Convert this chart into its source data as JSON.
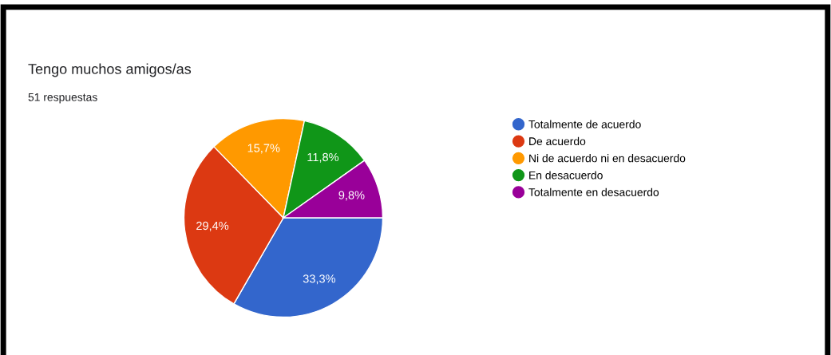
{
  "chart_data": {
    "type": "pie",
    "title": "Tengo muchos amigos/as",
    "subtitle": "51 respuestas",
    "categories": [
      "Totalmente de acuerdo",
      "De acuerdo",
      "Ni de acuerdo ni en desacuerdo",
      "En desacuerdo",
      "Totalmente en desacuerdo"
    ],
    "values": [
      33.3,
      29.4,
      15.7,
      11.8,
      9.8
    ],
    "value_labels": [
      "33,3%",
      "29,4%",
      "15,7%",
      "11,8%",
      "9,8%"
    ],
    "colors": [
      "#3366cc",
      "#dc3912",
      "#ff9900",
      "#109618",
      "#990099"
    ],
    "legend": "right"
  }
}
